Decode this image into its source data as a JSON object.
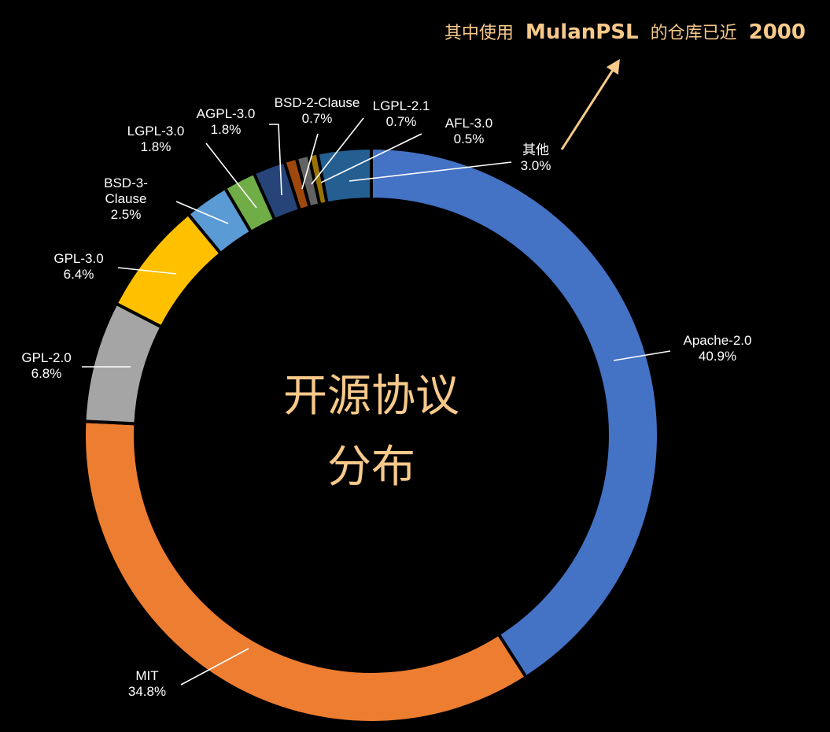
{
  "chart_data": {
    "type": "pie",
    "donut": true,
    "center_title": [
      "开源协议",
      "分布"
    ],
    "slices": [
      {
        "name": "Apache-2.0",
        "value": 40.9,
        "value_label": "40.9%",
        "color": "#4472c4"
      },
      {
        "name": "MIT",
        "value": 34.8,
        "value_label": "34.8%",
        "color": "#ed7d31"
      },
      {
        "name": "GPL-2.0",
        "value": 6.8,
        "value_label": "6.8%",
        "color": "#a5a5a5"
      },
      {
        "name": "GPL-3.0",
        "value": 6.4,
        "value_label": "6.4%",
        "color": "#ffc000"
      },
      {
        "name_lines": [
          "BSD-3-",
          "Clause"
        ],
        "value": 2.5,
        "value_label": "2.5%",
        "color": "#5b9bd5"
      },
      {
        "name": "LGPL-3.0",
        "value": 1.8,
        "value_label": "1.8%",
        "color": "#70ad47"
      },
      {
        "name": "AGPL-3.0",
        "value": 1.8,
        "value_label": "1.8%",
        "color": "#264478"
      },
      {
        "name": "BSD-2-Clause",
        "value": 0.7,
        "value_label": "0.7%",
        "color": "#9e480e"
      },
      {
        "name": "LGPL-2.1",
        "value": 0.7,
        "value_label": "0.7%",
        "color": "#636363"
      },
      {
        "name": "AFL-3.0",
        "value": 0.5,
        "value_label": "0.5%",
        "color": "#997300"
      },
      {
        "name": "其他",
        "value": 3.0,
        "value_label": "3.0%",
        "color": "#255e91"
      }
    ],
    "annotation": {
      "prefix": "其中使用",
      "bold1": "MulanPSL",
      "middle": "的仓库已近",
      "bold2": "2000",
      "target_slice": "其他",
      "color": "#f7c98a"
    }
  }
}
